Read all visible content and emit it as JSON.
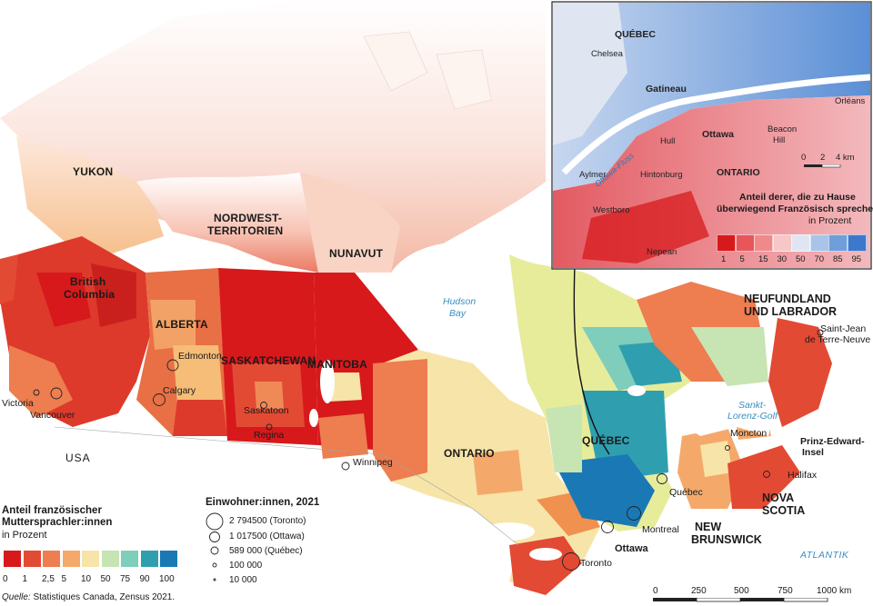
{
  "regions": {
    "yukon": "YUKON",
    "nwt_1": "NORDWEST-",
    "nwt_2": "TERRITORIEN",
    "nunavut": "NUNAVUT",
    "bc_1": "British",
    "bc_2": "Columbia",
    "alberta": "ALBERTA",
    "saskatchewan": "SASKATCHEWAN",
    "manitoba": "MANITOBA",
    "ontario": "ONTARIO",
    "quebec": "QUÉBEC",
    "newfoundland_1": "NEUFUNDLAND",
    "newfoundland_2": "UND LABRADOR",
    "new_brunswick_1": "NEW",
    "new_brunswick_2": "BRUNSWICK",
    "nova_scotia_1": "NOVA",
    "nova_scotia_2": "SCOTIA",
    "pei_1": "Prinz-Edward-",
    "pei_2": "Insel",
    "usa": "USA"
  },
  "cities": {
    "victoria": "Victoria",
    "vancouver": "Vancouver",
    "edmonton": "Edmonton",
    "calgary": "Calgary",
    "saskatoon": "Saskatoon",
    "regina": "Regina",
    "winnipeg": "Winnipeg",
    "toronto": "Toronto",
    "ottawa": "Ottawa",
    "montreal": "Montreal",
    "quebec_city": "Québec",
    "moncton": "Moncton",
    "halifax": "Halifax",
    "saint_jean_1": "Saint-Jean",
    "saint_jean_2": "de Terre-Neuve"
  },
  "water": {
    "hudson_1": "Hudson",
    "hudson_2": "Bay",
    "gulf_1": "Sankt-",
    "gulf_2": "Lorenz-Golf",
    "atlantic": "ATLANTIK"
  },
  "legend_main": {
    "title_1": "Anteil französischer",
    "title_2": "Muttersprachler:innen",
    "subtitle": "in Prozent",
    "ticks": [
      "0",
      "1",
      "2,5",
      "5",
      "10",
      "50",
      "75",
      "90",
      "100"
    ],
    "colors": [
      "#d7191c",
      "#e34a33",
      "#ee7d4f",
      "#f4a96b",
      "#f7e4a8",
      "#c7e4b3",
      "#7fcdbb",
      "#2f9fb0",
      "#1a79b5"
    ]
  },
  "legend_population": {
    "title": "Einwohner:innen, 2021",
    "items": [
      "2 794500 (Toronto)",
      "1 017500 (Ottawa)",
      "589 000 (Québec)",
      "100 000",
      "10 000"
    ]
  },
  "scale_bar": {
    "ticks": [
      "0",
      "250",
      "500",
      "750",
      "1000 km"
    ]
  },
  "source": {
    "prefix": "Quelle:",
    "text": " Statistiques Canada, Zensus 2021."
  },
  "inset": {
    "labels": {
      "quebec": "QUÉBEC",
      "chelsea": "Chelsea",
      "gatineau": "Gatineau",
      "hull": "Hull",
      "ottawa": "Ottawa",
      "beacon_1": "Beacon",
      "beacon_2": "Hill",
      "orleans": "Orléans",
      "aylmer": "Aylmer",
      "hintonburg": "Hintonburg",
      "ontario": "ONTARIO",
      "westboro": "Westboro",
      "nepean": "Nepean",
      "river": "Ottawa-Fluss"
    },
    "scale_ticks": [
      "0",
      "2",
      "4 km"
    ],
    "legend_title_1": "Anteil derer, die zu Hause",
    "legend_title_2": "überwiegend Französisch sprechen",
    "legend_subtitle": "in Prozent",
    "legend_ticks": [
      "1",
      "5",
      "15",
      "30",
      "50",
      "70",
      "85",
      "95"
    ],
    "legend_colors": [
      "#d7191c",
      "#e8565a",
      "#f08a8a",
      "#f7c6c6",
      "#dfe6f2",
      "#a9c4e8",
      "#6f9fdb",
      "#3c79cc"
    ]
  }
}
